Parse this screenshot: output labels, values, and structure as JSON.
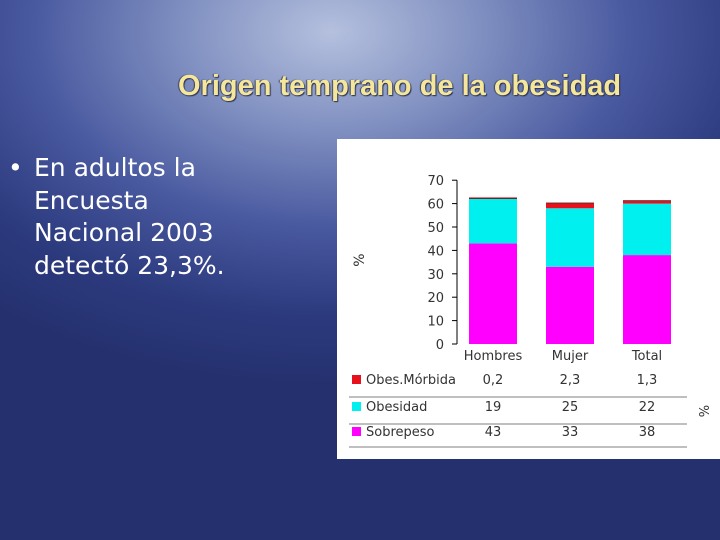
{
  "slide": {
    "title": "Origen temprano de la obesidad",
    "bullets": [
      {
        "marker": "•",
        "text": "En adultos la Encuesta Nacional 2003 detectó 23,3%."
      }
    ]
  },
  "chart_data": {
    "type": "bar",
    "stacked": true,
    "ylabel": "%",
    "ylim": [
      0,
      70
    ],
    "yticks": [
      0,
      10,
      20,
      30,
      40,
      50,
      60,
      70
    ],
    "categories": [
      "Hombres",
      "Mujer",
      "Total"
    ],
    "series": [
      {
        "name": "Sobrepeso",
        "color": "#ff00ff",
        "values": [
          43,
          33,
          38
        ],
        "labels": [
          "43",
          "33",
          "38"
        ]
      },
      {
        "name": "Obesidad",
        "color": "#00f0f0",
        "values": [
          19,
          25,
          22
        ],
        "labels": [
          "19",
          "25",
          "22"
        ]
      },
      {
        "name": "Obes.Mórbida",
        "color": "#e8101c",
        "values": [
          0.2,
          2.3,
          1.3
        ],
        "labels": [
          "0,2",
          "2,3",
          "1,3"
        ]
      }
    ],
    "table_rows": [
      "Obes.Mórbida",
      "Obesidad",
      "Sobrepeso"
    ],
    "table_unit": "%",
    "grid": false
  }
}
